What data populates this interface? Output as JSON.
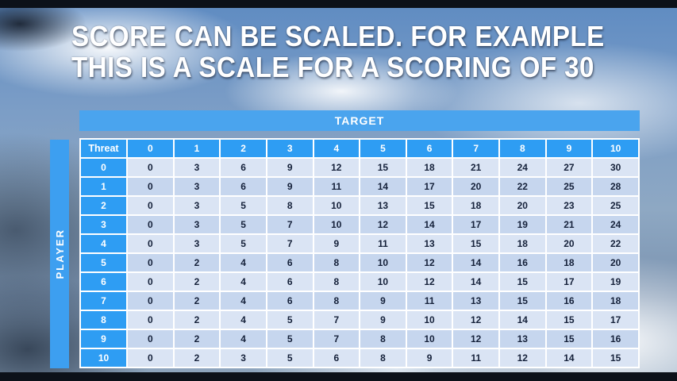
{
  "title": {
    "line1": "SCORE CAN BE SCALED. FOR EXAMPLE",
    "line2": "THIS IS A SCALE FOR A SCORING OF 30"
  },
  "table": {
    "target_label": "TARGET",
    "player_label": "PLAYER",
    "corner_label": "Threat",
    "columns": [
      "0",
      "1",
      "2",
      "3",
      "4",
      "5",
      "6",
      "7",
      "8",
      "9",
      "10"
    ],
    "rows": [
      {
        "threat": "0",
        "values": [
          0,
          3,
          6,
          9,
          12,
          15,
          18,
          21,
          24,
          27,
          30
        ]
      },
      {
        "threat": "1",
        "values": [
          0,
          3,
          6,
          9,
          11,
          14,
          17,
          20,
          22,
          25,
          28
        ]
      },
      {
        "threat": "2",
        "values": [
          0,
          3,
          5,
          8,
          10,
          13,
          15,
          18,
          20,
          23,
          25
        ]
      },
      {
        "threat": "3",
        "values": [
          0,
          3,
          5,
          7,
          10,
          12,
          14,
          17,
          19,
          21,
          24
        ]
      },
      {
        "threat": "4",
        "values": [
          0,
          3,
          5,
          7,
          9,
          11,
          13,
          15,
          18,
          20,
          22
        ]
      },
      {
        "threat": "5",
        "values": [
          0,
          2,
          4,
          6,
          8,
          10,
          12,
          14,
          16,
          18,
          20
        ]
      },
      {
        "threat": "6",
        "values": [
          0,
          2,
          4,
          6,
          8,
          10,
          12,
          14,
          15,
          17,
          19
        ]
      },
      {
        "threat": "7",
        "values": [
          0,
          2,
          4,
          6,
          8,
          9,
          11,
          13,
          15,
          16,
          18
        ]
      },
      {
        "threat": "8",
        "values": [
          0,
          2,
          4,
          5,
          7,
          9,
          10,
          12,
          14,
          15,
          17
        ]
      },
      {
        "threat": "9",
        "values": [
          0,
          2,
          4,
          5,
          7,
          8,
          10,
          12,
          13,
          15,
          16
        ]
      },
      {
        "threat": "10",
        "values": [
          0,
          2,
          3,
          5,
          6,
          8,
          9,
          11,
          12,
          14,
          15
        ]
      }
    ]
  },
  "colors": {
    "header_blue": "#2e9df3",
    "target_blue": "#4aa4ee",
    "player_blue": "#3d9ff0",
    "row_light": "#dae4f4",
    "row_dark": "#c6d6ee",
    "cell_text": "#15213a",
    "edge_bar": "#0c1119"
  }
}
